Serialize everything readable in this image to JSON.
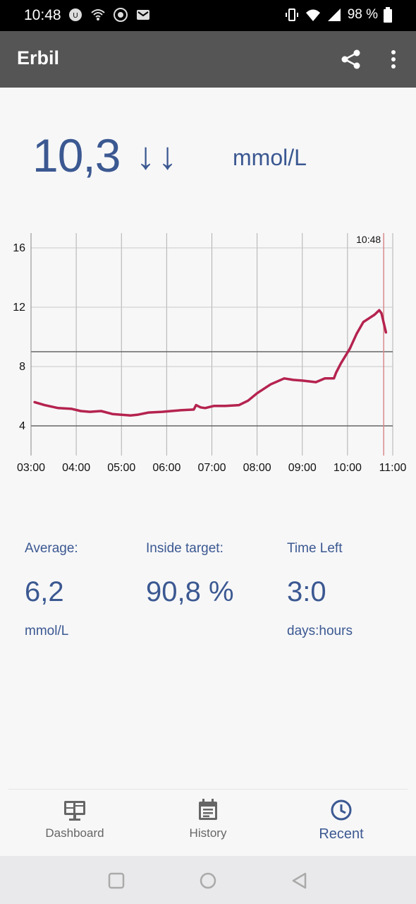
{
  "status_bar": {
    "time": "10:48",
    "battery": "98 %"
  },
  "app_bar": {
    "title": "Erbil"
  },
  "reading": {
    "value": "10,3",
    "trend": "↓↓",
    "unit": "mmol/L"
  },
  "chart_data": {
    "type": "line",
    "xlabel": "",
    "ylabel": "",
    "x_ticks": [
      "03:00",
      "04:00",
      "05:00",
      "06:00",
      "07:00",
      "08:00",
      "09:00",
      "10:00",
      "11:00"
    ],
    "y_ticks": [
      4,
      8,
      12,
      16
    ],
    "xlim_hours": [
      3.0,
      11.0
    ],
    "ylim": [
      2,
      17
    ],
    "target_range": [
      4,
      9
    ],
    "current_time_label": "10:48",
    "current_time_hours": 10.8,
    "series": [
      {
        "name": "glucose",
        "color": "#b5234f",
        "x": [
          3.08,
          3.3,
          3.6,
          3.9,
          4.1,
          4.3,
          4.55,
          4.8,
          5.0,
          5.2,
          5.35,
          5.6,
          5.9,
          6.1,
          6.3,
          6.6,
          6.65,
          6.75,
          6.85,
          7.05,
          7.3,
          7.6,
          7.8,
          8.0,
          8.3,
          8.6,
          8.8,
          9.0,
          9.3,
          9.5,
          9.7,
          9.75,
          9.85,
          10.05,
          10.2,
          10.35,
          10.5,
          10.6,
          10.7,
          10.75,
          10.85
        ],
        "y": [
          5.6,
          5.4,
          5.2,
          5.15,
          5.0,
          4.95,
          5.0,
          4.8,
          4.75,
          4.7,
          4.75,
          4.9,
          4.95,
          5.0,
          5.05,
          5.1,
          5.4,
          5.25,
          5.2,
          5.35,
          5.35,
          5.4,
          5.7,
          6.2,
          6.8,
          7.2,
          7.1,
          7.05,
          6.95,
          7.2,
          7.2,
          7.6,
          8.2,
          9.2,
          10.2,
          11.0,
          11.3,
          11.5,
          11.8,
          11.6,
          10.3
        ]
      }
    ]
  },
  "stats": {
    "average": {
      "label": "Average:",
      "value": "6,2",
      "unit": "mmol/L"
    },
    "inside_target": {
      "label": "Inside target:",
      "value": "90,8 %",
      "unit": ""
    },
    "time_left": {
      "label": "Time Left",
      "value": "3:0",
      "unit": "days:hours"
    }
  },
  "bottom_nav": {
    "items": [
      {
        "label": "Dashboard",
        "icon": "dashboard-icon",
        "active": false
      },
      {
        "label": "History",
        "icon": "calendar-icon",
        "active": false
      },
      {
        "label": "Recent",
        "icon": "clock-icon",
        "active": true
      }
    ]
  },
  "colors": {
    "accent": "#3b5891",
    "line": "#b5234f",
    "app_bar": "#555555"
  }
}
